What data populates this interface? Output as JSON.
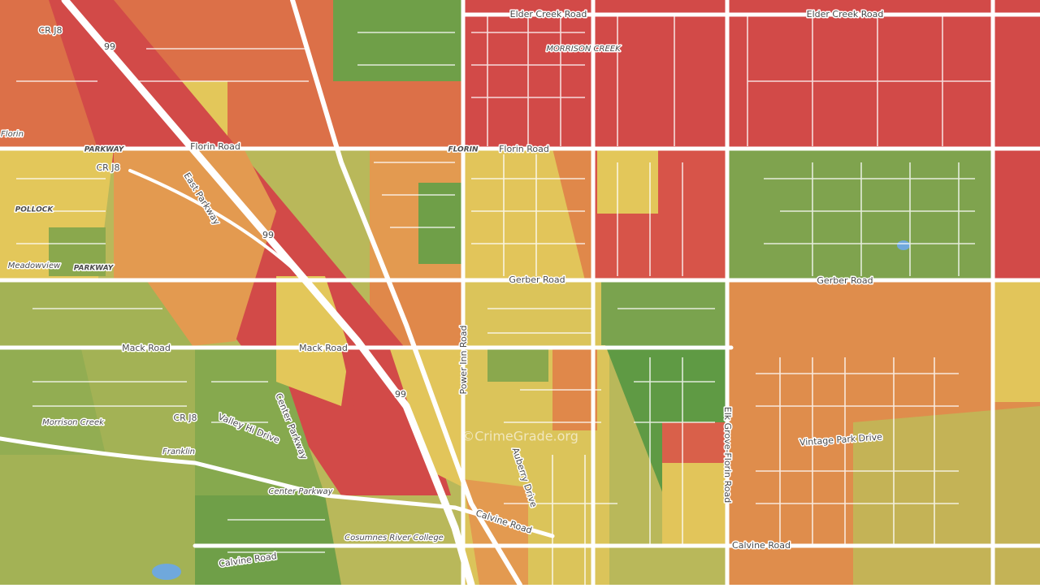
{
  "map": {
    "labels": [
      "Elder Creek Road",
      "Elder Creek Road",
      "MORRISON CREEK",
      "Florin",
      "PARKWAY",
      "Florin Road",
      "FLORIN",
      "Florin Road",
      "CR J8",
      "99",
      "CR J8",
      "East Parkway",
      "POLLOCK",
      "99",
      "Meadowview",
      "PARKWAY",
      "Gerber Road",
      "Gerber Road",
      "Mack Road",
      "Mack Road",
      "Power Inn Road",
      "99",
      "Morrison Creek",
      "CR J8",
      "Valley Hi Drive",
      "Center Parkway",
      "Franklin",
      "Center Parkway",
      "Elk Grove-Florin Road",
      "Vintage Park Drive",
      "Auberry Drive",
      "Calvine Road",
      "Calvine Road",
      "Cosumnes River College",
      "Calvine Road"
    ]
  },
  "watermark": "©CrimeGrade.org"
}
